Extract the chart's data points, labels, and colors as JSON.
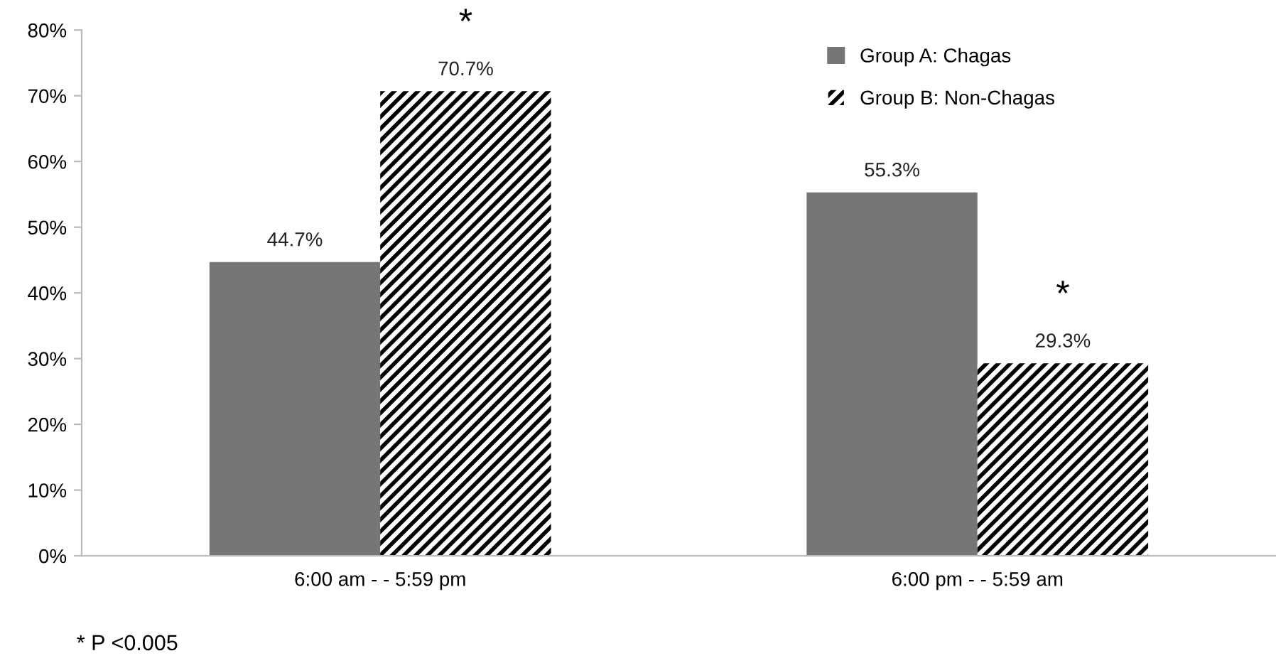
{
  "chart_data": {
    "type": "bar",
    "categories": [
      "6:00 am - - 5:59 pm",
      "6:00 pm - - 5:59 am"
    ],
    "series": [
      {
        "name": "Group A: Chagas",
        "color": "#767676",
        "values": [
          44.7,
          55.3
        ],
        "value_labels": [
          "44.7%",
          "55.3%"
        ]
      },
      {
        "name": "Group B: Non-Chagas",
        "color": "#000000",
        "values": [
          70.7,
          29.3
        ],
        "value_labels": [
          "70.7%",
          "29.3%"
        ]
      }
    ],
    "ylim": [
      0,
      80
    ],
    "yticks": [
      {
        "value": 0,
        "label": "0%"
      },
      {
        "value": 10,
        "label": "10%"
      },
      {
        "value": 20,
        "label": "20%"
      },
      {
        "value": 30,
        "label": "30%"
      },
      {
        "value": 40,
        "label": "40%"
      },
      {
        "value": 50,
        "label": "50%"
      },
      {
        "value": 60,
        "label": "60%"
      },
      {
        "value": 70,
        "label": "70%"
      },
      {
        "value": 80,
        "label": "80%"
      }
    ],
    "annotations": [
      "*",
      "*",
      "* P <0.005"
    ],
    "grid": false,
    "legend": "top"
  }
}
